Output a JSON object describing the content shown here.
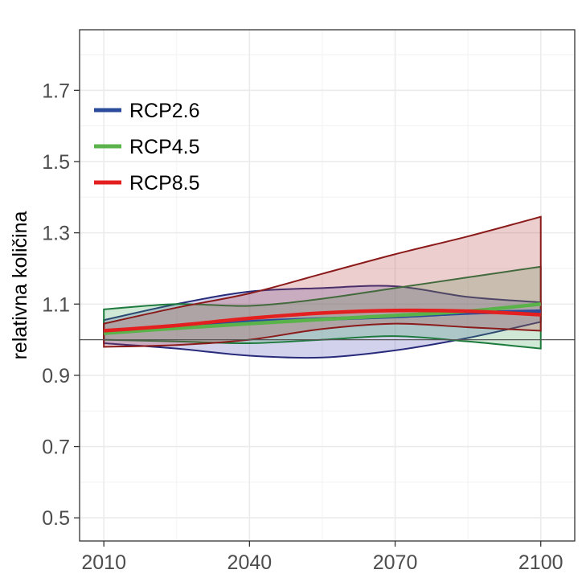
{
  "chart_data": {
    "type": "area",
    "title": "",
    "xlabel": "",
    "ylabel": "relativna količina",
    "xlim": [
      2005,
      2107
    ],
    "ylim": [
      0.435,
      1.87
    ],
    "x_ticks": [
      2010,
      2040,
      2070,
      2100
    ],
    "y_ticks": [
      0.5,
      0.7,
      0.9,
      1.1,
      1.3,
      1.5,
      1.7
    ],
    "y_tick_labels": [
      "0.5",
      "0.7",
      "0.9",
      "1.1",
      "1.3",
      "1.5",
      "1.7"
    ],
    "x_minor_ticks": [
      2025,
      2055,
      2085
    ],
    "y_minor_ticks": [
      0.6,
      0.8,
      1.0,
      1.2,
      1.4,
      1.6,
      1.8
    ],
    "grid": true,
    "reference_line": 1.0,
    "legend_position": "top-left",
    "x": [
      2010,
      2025,
      2040,
      2055,
      2070,
      2085,
      2100
    ],
    "series": [
      {
        "name": "RCP2.6",
        "color": "#2b4b9b",
        "outline": "#272b7a",
        "fill": "#4b4bb4",
        "mean": [
          1.02,
          1.035,
          1.05,
          1.058,
          1.065,
          1.075,
          1.08
        ],
        "upper": [
          1.055,
          1.1,
          1.135,
          1.145,
          1.15,
          1.12,
          1.105
        ],
        "lower": [
          0.99,
          0.975,
          0.955,
          0.95,
          0.97,
          1.005,
          1.05
        ]
      },
      {
        "name": "RCP4.5",
        "color": "#5ab24a",
        "outline": "#1d7a3d",
        "fill": "#3fa85a",
        "mean": [
          1.018,
          1.032,
          1.045,
          1.057,
          1.068,
          1.08,
          1.1
        ],
        "upper": [
          1.085,
          1.1,
          1.095,
          1.115,
          1.145,
          1.175,
          1.205
        ],
        "lower": [
          1.0,
          0.995,
          0.99,
          1.0,
          1.01,
          0.995,
          0.975
        ]
      },
      {
        "name": "RCP8.5",
        "color": "#e41f1f",
        "outline": "#8b1a1a",
        "fill": "#b23a3a",
        "mean": [
          1.025,
          1.04,
          1.06,
          1.075,
          1.082,
          1.08,
          1.07
        ],
        "upper": [
          1.045,
          1.09,
          1.13,
          1.185,
          1.24,
          1.29,
          1.345
        ],
        "lower": [
          0.98,
          0.985,
          1.0,
          1.03,
          1.045,
          1.035,
          1.025
        ]
      }
    ]
  }
}
